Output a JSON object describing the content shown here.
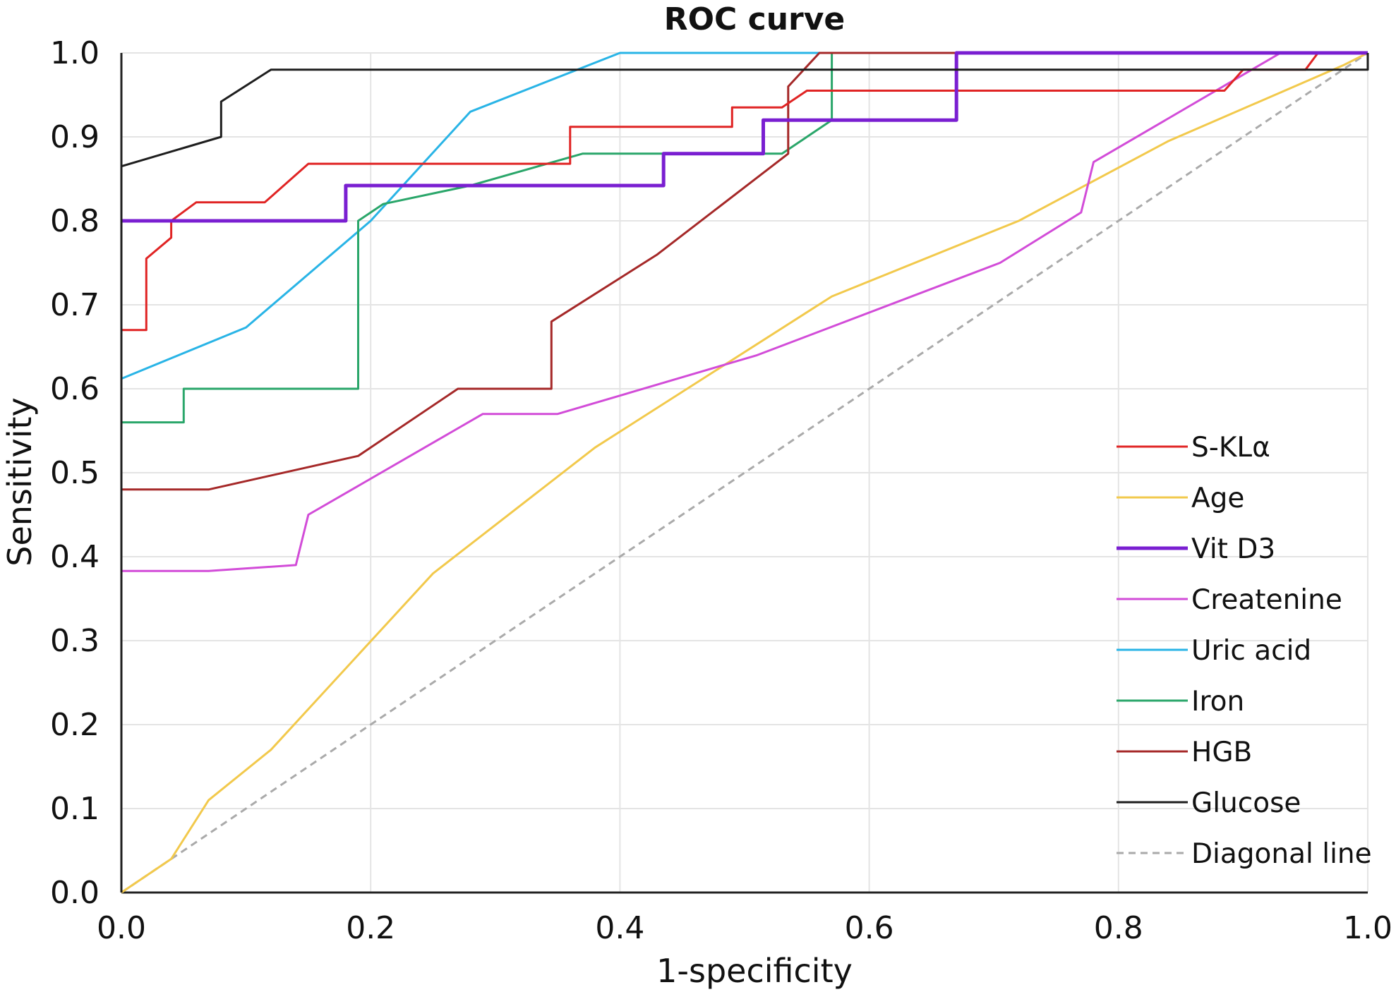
{
  "chart_data": {
    "type": "line",
    "title": "ROC curve",
    "xlabel": "1-specificity",
    "ylabel": "Sensitivity",
    "xlim": [
      0,
      1
    ],
    "ylim": [
      0,
      1
    ],
    "x_ticks": [
      "0.0",
      "0.2",
      "0.4",
      "0.6",
      "0.8",
      "1.0"
    ],
    "y_ticks": [
      "0.0",
      "0.1",
      "0.2",
      "0.3",
      "0.4",
      "0.5",
      "0.6",
      "0.7",
      "0.8",
      "0.9",
      "1.0"
    ],
    "grid": true,
    "legend_position": "right",
    "series": [
      {
        "name": "S-KLα",
        "color": "#e02424",
        "stroke_width": 3,
        "dashed": false,
        "points": [
          [
            0,
            0.67
          ],
          [
            0.02,
            0.67
          ],
          [
            0.02,
            0.755
          ],
          [
            0.04,
            0.78
          ],
          [
            0.04,
            0.8
          ],
          [
            0.06,
            0.822
          ],
          [
            0.115,
            0.822
          ],
          [
            0.15,
            0.868
          ],
          [
            0.36,
            0.868
          ],
          [
            0.36,
            0.912
          ],
          [
            0.49,
            0.912
          ],
          [
            0.49,
            0.935
          ],
          [
            0.53,
            0.935
          ],
          [
            0.55,
            0.955
          ],
          [
            0.885,
            0.955
          ],
          [
            0.9,
            0.98
          ],
          [
            0.95,
            0.98
          ],
          [
            0.96,
            1
          ],
          [
            1,
            1
          ]
        ]
      },
      {
        "name": "Age",
        "color": "#f2c94c",
        "stroke_width": 3,
        "dashed": false,
        "points": [
          [
            0,
            0
          ],
          [
            0.04,
            0.04
          ],
          [
            0.07,
            0.11
          ],
          [
            0.12,
            0.17
          ],
          [
            0.25,
            0.38
          ],
          [
            0.38,
            0.53
          ],
          [
            0.57,
            0.71
          ],
          [
            0.72,
            0.8
          ],
          [
            0.84,
            0.895
          ],
          [
            0.98,
            0.985
          ],
          [
            1,
            1
          ]
        ]
      },
      {
        "name": "Vit D3",
        "color": "#7a1fd1",
        "stroke_width": 5,
        "dashed": false,
        "points": [
          [
            0,
            0.8
          ],
          [
            0.18,
            0.8
          ],
          [
            0.18,
            0.842
          ],
          [
            0.435,
            0.842
          ],
          [
            0.435,
            0.88
          ],
          [
            0.515,
            0.88
          ],
          [
            0.515,
            0.92
          ],
          [
            0.67,
            0.92
          ],
          [
            0.67,
            1
          ],
          [
            1,
            1
          ]
        ]
      },
      {
        "name": "Createnine",
        "color": "#d24cd8",
        "stroke_width": 3,
        "dashed": false,
        "points": [
          [
            0,
            0.383
          ],
          [
            0.07,
            0.383
          ],
          [
            0.14,
            0.39
          ],
          [
            0.15,
            0.45
          ],
          [
            0.29,
            0.57
          ],
          [
            0.35,
            0.57
          ],
          [
            0.51,
            0.64
          ],
          [
            0.705,
            0.75
          ],
          [
            0.77,
            0.81
          ],
          [
            0.78,
            0.87
          ],
          [
            0.93,
            1
          ],
          [
            1,
            1
          ]
        ]
      },
      {
        "name": "Uric acid",
        "color": "#29b4e6",
        "stroke_width": 3,
        "dashed": false,
        "points": [
          [
            0,
            0.612
          ],
          [
            0.1,
            0.673
          ],
          [
            0.2,
            0.8
          ],
          [
            0.28,
            0.93
          ],
          [
            0.4,
            1
          ],
          [
            1,
            1
          ]
        ]
      },
      {
        "name": "Iron",
        "color": "#2aa66a",
        "stroke_width": 3,
        "dashed": false,
        "points": [
          [
            0,
            0.56
          ],
          [
            0.05,
            0.56
          ],
          [
            0.05,
            0.6
          ],
          [
            0.19,
            0.6
          ],
          [
            0.19,
            0.8
          ],
          [
            0.21,
            0.82
          ],
          [
            0.28,
            0.842
          ],
          [
            0.37,
            0.88
          ],
          [
            0.53,
            0.88
          ],
          [
            0.57,
            0.92
          ],
          [
            0.57,
            1
          ],
          [
            1,
            1
          ]
        ]
      },
      {
        "name": "HGB",
        "color": "#a52828",
        "stroke_width": 3,
        "dashed": false,
        "points": [
          [
            0,
            0.48
          ],
          [
            0.07,
            0.48
          ],
          [
            0.19,
            0.52
          ],
          [
            0.27,
            0.6
          ],
          [
            0.345,
            0.6
          ],
          [
            0.345,
            0.68
          ],
          [
            0.43,
            0.76
          ],
          [
            0.535,
            0.88
          ],
          [
            0.535,
            0.96
          ],
          [
            0.56,
            1
          ],
          [
            1,
            1
          ]
        ]
      },
      {
        "name": "Glucose",
        "color": "#1e1e1e",
        "stroke_width": 3,
        "dashed": false,
        "points": [
          [
            0,
            0
          ],
          [
            0,
            0.865
          ],
          [
            0.08,
            0.9
          ],
          [
            0.08,
            0.942
          ],
          [
            0.12,
            0.98
          ],
          [
            1,
            0.98
          ],
          [
            1,
            1
          ]
        ]
      },
      {
        "name": "Diagonal line",
        "color": "#aaaaaa",
        "stroke_width": 3,
        "dashed": true,
        "points": [
          [
            0,
            0
          ],
          [
            1,
            1
          ]
        ]
      }
    ]
  }
}
